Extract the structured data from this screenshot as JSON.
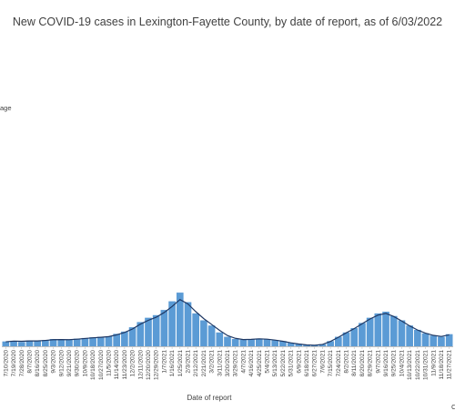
{
  "chart_data": {
    "type": "bar",
    "title": "New COVID-19 cases in Lexington-Fayette County, by date of report, as of 6/03/2022",
    "xlabel": "Date of report",
    "ylabel": "",
    "legend_fragment": "age",
    "corner_fragment": "C",
    "colors": {
      "bars": "#5b9bd5",
      "average_line": "#1f3864",
      "axis": "#bfbfbf",
      "text": "#404040"
    },
    "x_ticks": [
      "7/10/2020",
      "7/19/2020",
      "7/28/2020",
      "8/7/2020",
      "8/16/2020",
      "8/25/2020",
      "9/3/2020",
      "9/12/2020",
      "9/21/2020",
      "9/30/2020",
      "10/9/2020",
      "10/18/2020",
      "10/27/2020",
      "11/5/2020",
      "11/14/2020",
      "11/23/2020",
      "12/2/2020",
      "12/11/2020",
      "12/20/2020",
      "12/29/2020",
      "1/7/2021",
      "1/16/2021",
      "1/25/2021",
      "2/3/2021",
      "2/12/2021",
      "2/21/2021",
      "3/2/2021",
      "3/11/2021",
      "3/20/2021",
      "3/29/2021",
      "4/7/2021",
      "4/16/2021",
      "4/25/2021",
      "5/4/2021",
      "5/13/2021",
      "5/22/2021",
      "5/31/2021",
      "6/9/2021",
      "6/18/2021",
      "6/27/2021",
      "7/6/2021",
      "7/15/2021",
      "7/24/2021",
      "8/2/2021",
      "8/11/2021",
      "8/20/2021",
      "8/29/2021",
      "9/7/2021",
      "9/16/2021",
      "9/25/2021",
      "10/4/2021",
      "10/13/2021",
      "10/22/2021",
      "10/31/2021",
      "11/9/2021",
      "11/18/2021",
      "11/27/2021"
    ],
    "series": [
      {
        "name": "",
        "kind": "bar",
        "values": [
          28,
          32,
          25,
          34,
          30,
          36,
          42,
          40,
          38,
          44,
          48,
          52,
          55,
          58,
          72,
          85,
          110,
          140,
          165,
          180,
          210,
          260,
          310,
          255,
          190,
          150,
          120,
          80,
          55,
          42,
          38,
          40,
          45,
          42,
          36,
          30,
          20,
          14,
          8,
          6,
          12,
          30,
          55,
          80,
          105,
          135,
          165,
          190,
          200,
          175,
          150,
          120,
          95,
          75,
          62,
          55,
          70
        ]
      },
      {
        "name": "",
        "kind": "line",
        "values": [
          26,
          30,
          29,
          31,
          31,
          34,
          38,
          39,
          38,
          41,
          45,
          49,
          52,
          56,
          66,
          80,
          100,
          128,
          150,
          168,
          195,
          230,
          270,
          245,
          200,
          160,
          126,
          92,
          62,
          46,
          39,
          40,
          43,
          41,
          36,
          29,
          20,
          13,
          8,
          6,
          11,
          28,
          52,
          78,
          102,
          130,
          158,
          180,
          190,
          172,
          146,
          118,
          94,
          76,
          63,
          57,
          66
        ]
      }
    ]
  }
}
